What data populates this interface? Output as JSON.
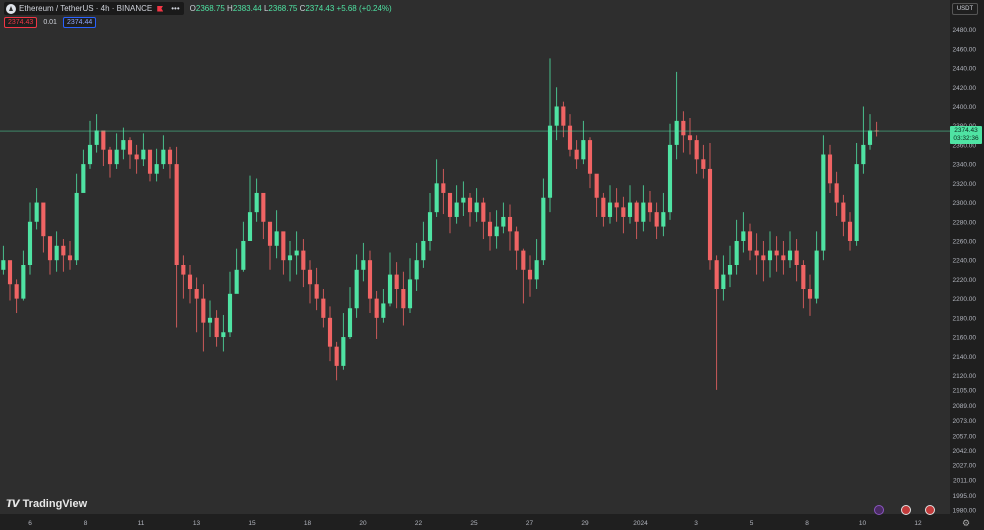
{
  "header": {
    "symbol": "Ethereum / TetherUS · 4h · BINANCE",
    "more": "•••",
    "ohlc": {
      "o_label": "O",
      "o": "2368.75",
      "h_label": "H",
      "h": "2383.44",
      "l_label": "L",
      "l": "2368.75",
      "c_label": "C",
      "c": "2374.43",
      "change": "+5.68 (+0.24%)"
    },
    "sell_price": "2374.43",
    "spread": "0.01",
    "buy_price": "2374.44",
    "currency": "USDT"
  },
  "last_price": {
    "value": 2374.43,
    "label": "2374.43",
    "countdown": "03:32:36"
  },
  "brand": "TradingView",
  "colors": {
    "up": "#4fe3a3",
    "down": "#f06464",
    "background": "#2e2e2e",
    "price_line": "#4fe3a3"
  },
  "chart_data": {
    "type": "candlestick",
    "x_ticks": [
      "6",
      "8",
      "11",
      "13",
      "15",
      "18",
      "20",
      "22",
      "25",
      "27",
      "29",
      "2024",
      "3",
      "5",
      "8",
      "10",
      "12"
    ],
    "y_ticks": [
      "2480.00",
      "2460.00",
      "2440.00",
      "2420.00",
      "2400.00",
      "2380.00",
      "2360.00",
      "2340.00",
      "2320.00",
      "2300.00",
      "2280.00",
      "2260.00",
      "2240.00",
      "2220.00",
      "2200.00",
      "2180.00",
      "2160.00",
      "2140.00",
      "2120.00",
      "2105.00",
      "2089.00",
      "2073.00",
      "2057.00",
      "2042.00",
      "2027.00",
      "2011.00",
      "1995.00",
      "1980.00"
    ],
    "ylim": [
      1980,
      2490
    ],
    "grid": false,
    "closes": [
      2240,
      2215,
      2200,
      2235,
      2280,
      2300,
      2265,
      2240,
      2255,
      2245,
      2240,
      2310,
      2340,
      2360,
      2375,
      2355,
      2340,
      2355,
      2365,
      2350,
      2345,
      2355,
      2330,
      2340,
      2355,
      2340,
      2235,
      2225,
      2210,
      2200,
      2175,
      2180,
      2160,
      2165,
      2205,
      2230,
      2260,
      2290,
      2310,
      2280,
      2255,
      2270,
      2240,
      2245,
      2250,
      2230,
      2215,
      2200,
      2180,
      2150,
      2130,
      2160,
      2190,
      2230,
      2240,
      2200,
      2180,
      2195,
      2225,
      2210,
      2190,
      2220,
      2240,
      2260,
      2290,
      2320,
      2310,
      2285,
      2300,
      2305,
      2290,
      2300,
      2280,
      2265,
      2275,
      2285,
      2270,
      2250,
      2230,
      2220,
      2240,
      2305,
      2380,
      2400,
      2380,
      2355,
      2345,
      2365,
      2330,
      2305,
      2285,
      2300,
      2295,
      2285,
      2300,
      2280,
      2300,
      2290,
      2275,
      2290,
      2360,
      2385,
      2370,
      2365,
      2345,
      2335,
      2240,
      2210,
      2225,
      2235,
      2260,
      2270,
      2250,
      2245,
      2240,
      2250,
      2245,
      2240,
      2250,
      2235,
      2210,
      2200,
      2250,
      2350,
      2320,
      2300,
      2280,
      2260,
      2340,
      2360,
      2375,
      2374.43
    ],
    "highs": [
      2255,
      2235,
      2220,
      2250,
      2300,
      2315,
      2280,
      2255,
      2270,
      2262,
      2260,
      2330,
      2355,
      2385,
      2392,
      2370,
      2358,
      2372,
      2378,
      2368,
      2360,
      2372,
      2352,
      2356,
      2370,
      2358,
      2358,
      2245,
      2235,
      2222,
      2215,
      2198,
      2188,
      2183,
      2228,
      2252,
      2280,
      2328,
      2325,
      2308,
      2275,
      2292,
      2268,
      2260,
      2270,
      2262,
      2240,
      2232,
      2210,
      2192,
      2155,
      2185,
      2212,
      2246,
      2258,
      2250,
      2208,
      2210,
      2248,
      2238,
      2228,
      2242,
      2258,
      2280,
      2310,
      2345,
      2335,
      2310,
      2318,
      2322,
      2310,
      2315,
      2305,
      2290,
      2292,
      2300,
      2298,
      2275,
      2252,
      2245,
      2262,
      2325,
      2450,
      2420,
      2405,
      2392,
      2365,
      2385,
      2368,
      2328,
      2310,
      2318,
      2315,
      2306,
      2318,
      2302,
      2318,
      2312,
      2300,
      2310,
      2382,
      2436,
      2395,
      2388,
      2370,
      2360,
      2362,
      2245,
      2245,
      2255,
      2282,
      2290,
      2278,
      2268,
      2260,
      2270,
      2265,
      2260,
      2270,
      2262,
      2240,
      2225,
      2270,
      2370,
      2360,
      2332,
      2308,
      2290,
      2362,
      2400,
      2392,
      2384
    ],
    "lows": [
      2225,
      2198,
      2185,
      2198,
      2225,
      2272,
      2248,
      2225,
      2228,
      2228,
      2230,
      2235,
      2315,
      2335,
      2352,
      2338,
      2326,
      2335,
      2345,
      2335,
      2330,
      2338,
      2322,
      2322,
      2335,
      2325,
      2170,
      2200,
      2195,
      2165,
      2145,
      2160,
      2150,
      2145,
      2160,
      2208,
      2228,
      2270,
      2280,
      2262,
      2230,
      2242,
      2225,
      2218,
      2225,
      2212,
      2195,
      2188,
      2170,
      2135,
      2115,
      2126,
      2158,
      2180,
      2218,
      2185,
      2158,
      2175,
      2192,
      2190,
      2172,
      2185,
      2208,
      2232,
      2250,
      2285,
      2288,
      2268,
      2278,
      2286,
      2275,
      2280,
      2262,
      2250,
      2252,
      2268,
      2250,
      2230,
      2195,
      2202,
      2210,
      2235,
      2290,
      2365,
      2368,
      2348,
      2335,
      2340,
      2315,
      2285,
      2275,
      2278,
      2280,
      2268,
      2278,
      2262,
      2270,
      2280,
      2262,
      2265,
      2282,
      2345,
      2352,
      2350,
      2330,
      2325,
      2230,
      2105,
      2198,
      2212,
      2225,
      2248,
      2240,
      2225,
      2218,
      2222,
      2228,
      2225,
      2232,
      2218,
      2190,
      2182,
      2195,
      2240,
      2310,
      2286,
      2265,
      2250,
      2255,
      2330,
      2355,
      2368.75
    ]
  }
}
